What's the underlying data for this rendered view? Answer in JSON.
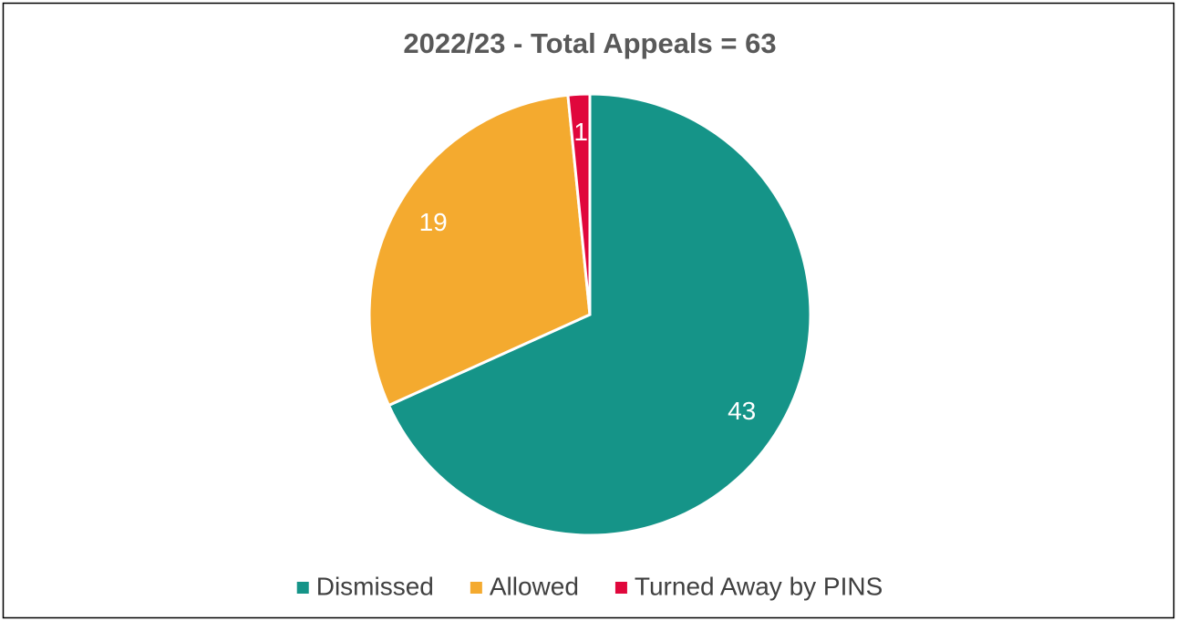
{
  "chart_data": {
    "type": "pie",
    "title": "2022/23 - Total Appeals = 63",
    "categories": [
      "Dismissed",
      "Allowed",
      "Turned Away by PINS"
    ],
    "values": [
      43,
      19,
      1
    ],
    "colors": [
      "#159488",
      "#f4aa2f",
      "#e0073c"
    ],
    "legend": "bottom"
  }
}
